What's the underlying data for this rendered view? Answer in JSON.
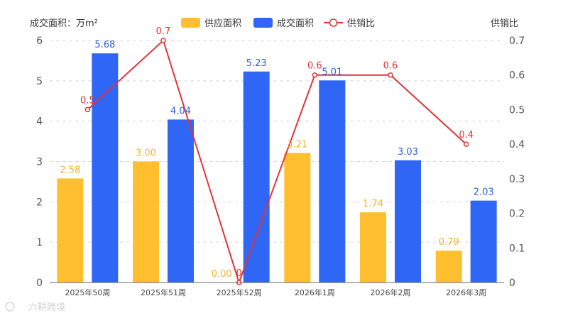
{
  "chart_data": {
    "type": "bar+line",
    "categories": [
      "2025年50周",
      "2025年51周",
      "2025年52周",
      "2026年1周",
      "2026年2周",
      "2026年3周"
    ],
    "series": [
      {
        "name": "供应面积",
        "type": "bar",
        "axis": "left",
        "color": "#FFBF2E",
        "values": [
          2.58,
          3.0,
          0.0,
          3.21,
          1.74,
          0.79
        ],
        "labels": [
          "2.58",
          "3.00",
          "0.00",
          "3.21",
          "1.74",
          "0.79"
        ]
      },
      {
        "name": "成交面积",
        "type": "bar",
        "axis": "left",
        "color": "#2F66F5",
        "values": [
          5.68,
          4.04,
          5.23,
          5.01,
          3.03,
          2.03
        ],
        "labels": [
          "5.68",
          "4.04",
          "5.23",
          "5.01",
          "3.03",
          "2.03"
        ]
      },
      {
        "name": "供销比",
        "type": "line",
        "axis": "right",
        "color": "#E0353A",
        "values": [
          0.5,
          0.7,
          0,
          0.6,
          0.6,
          0.4
        ],
        "labels": [
          "0.5",
          "0.7",
          "0",
          "0.6",
          "0.6",
          "0.4"
        ]
      }
    ],
    "ylabel_left": "成交面积：万m²",
    "ylabel_right": "供销比",
    "ylim_left": [
      0,
      6
    ],
    "ylim_right": [
      0,
      0.7
    ],
    "yticks_left": [
      "0",
      "1",
      "2",
      "3",
      "4",
      "5",
      "6"
    ],
    "yticks_right": [
      "0",
      "0.1",
      "0.2",
      "0.3",
      "0.4",
      "0.5",
      "0.6",
      "0.7"
    ],
    "grid": true,
    "legend_position": "top-center"
  },
  "watermark": "六耕跨境"
}
